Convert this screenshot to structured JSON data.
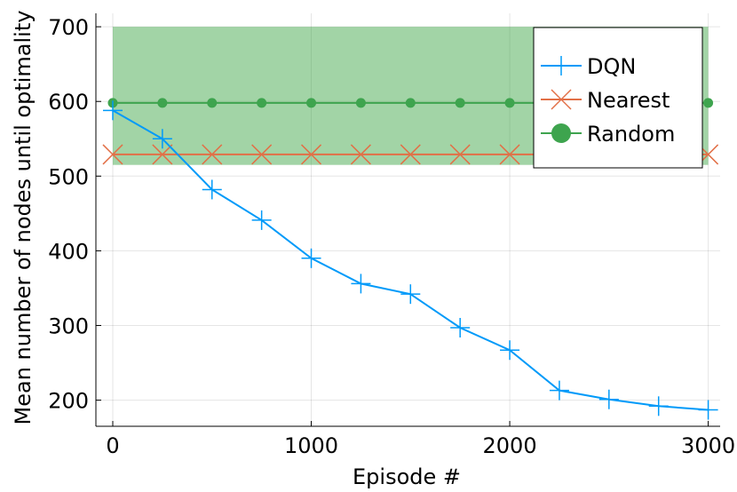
{
  "chart_data": {
    "type": "line",
    "title": "",
    "xlabel": "Episode #",
    "ylabel": "Mean number of nodes until optimality",
    "xlim": [
      -85,
      3060
    ],
    "ylim": [
      165,
      718
    ],
    "x_ticks": [
      0,
      1000,
      2000,
      3000
    ],
    "y_ticks": [
      200,
      300,
      400,
      500,
      600,
      700
    ],
    "x_tick_labels": [
      "0",
      "1000",
      "2000",
      "3000"
    ],
    "y_tick_labels": [
      "200",
      "300",
      "400",
      "500",
      "600",
      "700"
    ],
    "grid": true,
    "legend_position": "top-right",
    "band": {
      "x": [
        0,
        3000
      ],
      "y_low": 515,
      "y_high": 700,
      "color": "#3ca644",
      "opacity": 0.48
    },
    "series": [
      {
        "name": "DQN",
        "color": "#009af9",
        "marker": "plus",
        "x": [
          0,
          250,
          500,
          750,
          1000,
          1250,
          1500,
          1750,
          2000,
          2250,
          2500,
          2750,
          3000
        ],
        "y": [
          588,
          550,
          482,
          441,
          390,
          356,
          342,
          297,
          267,
          213,
          201,
          192,
          187
        ]
      },
      {
        "name": "Nearest",
        "color": "#e26f46",
        "marker": "cross",
        "x": [
          0,
          250,
          500,
          750,
          1000,
          1250,
          1500,
          1750,
          2000,
          2250,
          2500,
          2750,
          3000
        ],
        "y": [
          529,
          529,
          529,
          529,
          529,
          529,
          529,
          529,
          529,
          529,
          529,
          529,
          529
        ]
      },
      {
        "name": "Random",
        "color": "#3ea44e",
        "marker": "circle",
        "x": [
          0,
          250,
          500,
          750,
          1000,
          1250,
          1500,
          1750,
          2000,
          2250,
          2500,
          2750,
          3000
        ],
        "y": [
          598,
          598,
          598,
          598,
          598,
          598,
          598,
          598,
          598,
          598,
          598,
          598,
          598
        ]
      }
    ]
  }
}
